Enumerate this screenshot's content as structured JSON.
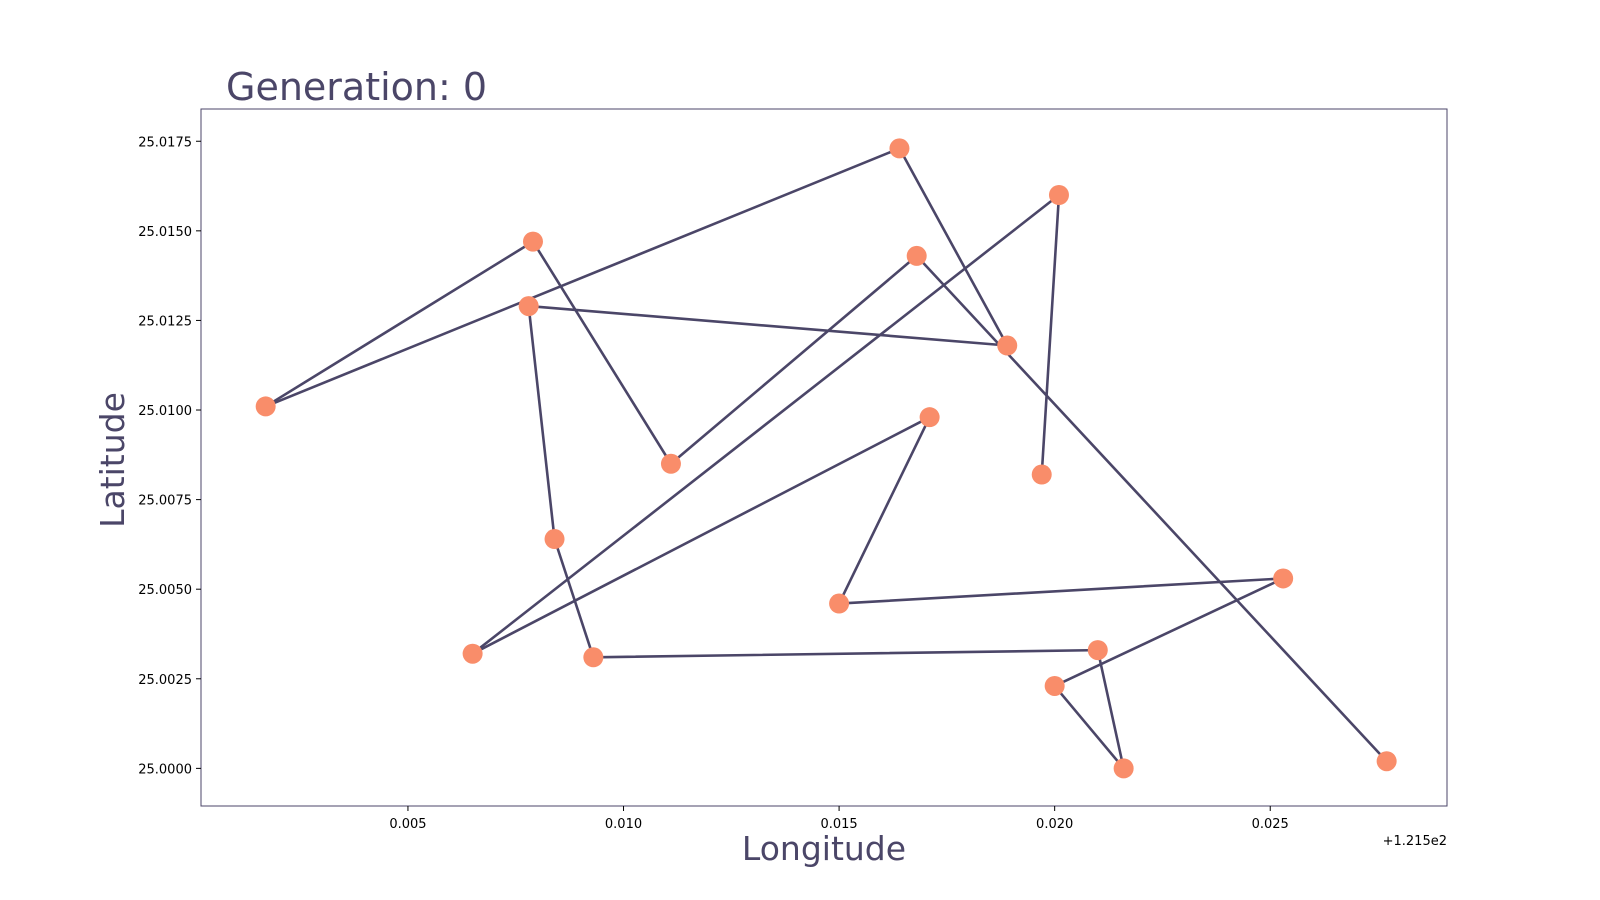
{
  "chart_data": {
    "type": "line",
    "title": "Generation: 0",
    "xlabel": "Longitude",
    "ylabel": "Latitude",
    "x_offset_label": "+1.215e2",
    "x_offset": 121.5,
    "xlim": [
      121.5002,
      121.5291
    ],
    "ylim": [
      24.99895,
      25.0184
    ],
    "x_ticks": [
      {
        "value": 121.505,
        "label": "0.005"
      },
      {
        "value": 121.51,
        "label": "0.010"
      },
      {
        "value": 121.515,
        "label": "0.015"
      },
      {
        "value": 121.52,
        "label": "0.020"
      },
      {
        "value": 121.525,
        "label": "0.025"
      }
    ],
    "y_ticks": [
      {
        "value": 25.0,
        "label": "25.0000"
      },
      {
        "value": 25.0025,
        "label": "25.0025"
      },
      {
        "value": 25.005,
        "label": "25.0050"
      },
      {
        "value": 25.0075,
        "label": "25.0075"
      },
      {
        "value": 25.01,
        "label": "25.0100"
      },
      {
        "value": 25.0125,
        "label": "25.0125"
      },
      {
        "value": 25.015,
        "label": "25.0150"
      },
      {
        "value": 25.0175,
        "label": "25.0175"
      }
    ],
    "grid": false,
    "series": [
      {
        "x": [
          121.5197,
          121.5201,
          121.5065,
          121.5171,
          121.515,
          121.5253,
          121.52,
          121.5216,
          121.521,
          121.5093,
          121.5084,
          121.5078,
          121.5189,
          121.5164,
          121.5017,
          121.5079,
          121.5111,
          121.5168,
          121.5277
        ],
        "y": [
          25.0082,
          25.016,
          25.0032,
          25.0098,
          25.0046,
          25.0053,
          25.0023,
          25.0,
          25.0033,
          25.0031,
          25.0064,
          25.0129,
          25.0118,
          25.0173,
          25.0101,
          25.0147,
          25.0085,
          25.0143,
          25.0002
        ]
      }
    ],
    "colors": {
      "line": "#4b4668",
      "marker": "#f98d6a",
      "text": "#4b4668",
      "frame": "#4b4668"
    }
  }
}
